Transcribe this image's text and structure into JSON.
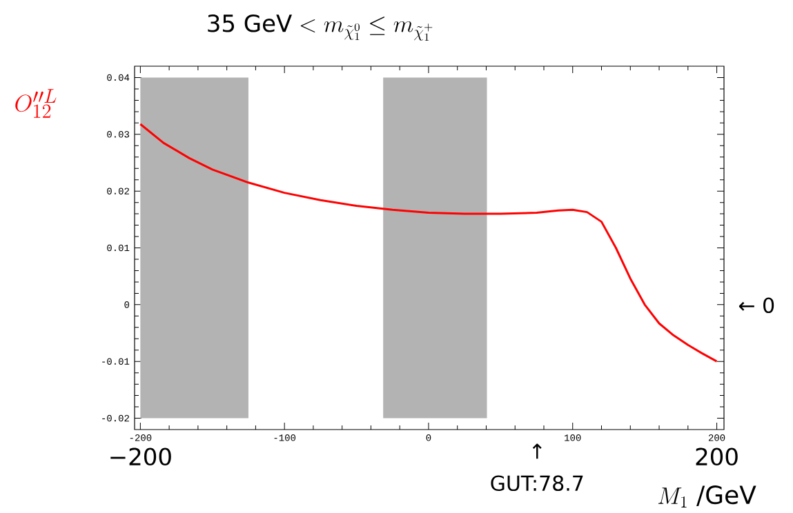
{
  "chart_data": {
    "type": "line",
    "title": "\\mbox{35 GeV}< m_{\\tilde{\\chi}_1^0}\\leq m_{\\tilde{\\chi}_1^+}",
    "xlabel": "M_1\\ \\mbox{/GeV}",
    "ylabel": "O^{\\prime\\prime L}_{12}",
    "x": [
      -200,
      -184,
      -166,
      -150,
      -125,
      -100,
      -75,
      -50,
      -25,
      0,
      25,
      50,
      75,
      90,
      100,
      110,
      120,
      130,
      140,
      150,
      160,
      170,
      180,
      190,
      200
    ],
    "series": [
      {
        "color": "#ff0000",
        "values": [
          0.0318,
          0.0285,
          0.0258,
          0.0238,
          0.0215,
          0.0197,
          0.0184,
          0.0174,
          0.0167,
          0.0162,
          0.016,
          0.016,
          0.0162,
          0.0166,
          0.0167,
          0.0163,
          0.0146,
          0.01,
          0.0046,
          0.0,
          -0.0033,
          -0.0054,
          -0.0071,
          -0.0086,
          -0.01
        ]
      }
    ],
    "xlim": [
      -204,
      205
    ],
    "ylim": [
      -0.022,
      0.042
    ],
    "xticks": [
      -200,
      -100,
      0,
      100,
      200
    ],
    "yticks": [
      -0.02,
      -0.01,
      0,
      0.01,
      0.02,
      0.03,
      0.04
    ],
    "bands": [
      {
        "axis": "x",
        "from": -200,
        "to": -125,
        "color": "#b3b3b3"
      },
      {
        "axis": "x",
        "from": -31.5,
        "to": 40.5,
        "color": "#b3b3b3"
      }
    ],
    "annotations": [
      "−200",
      "200",
      "↑",
      "GUT:78.7",
      "← 0"
    ]
  }
}
